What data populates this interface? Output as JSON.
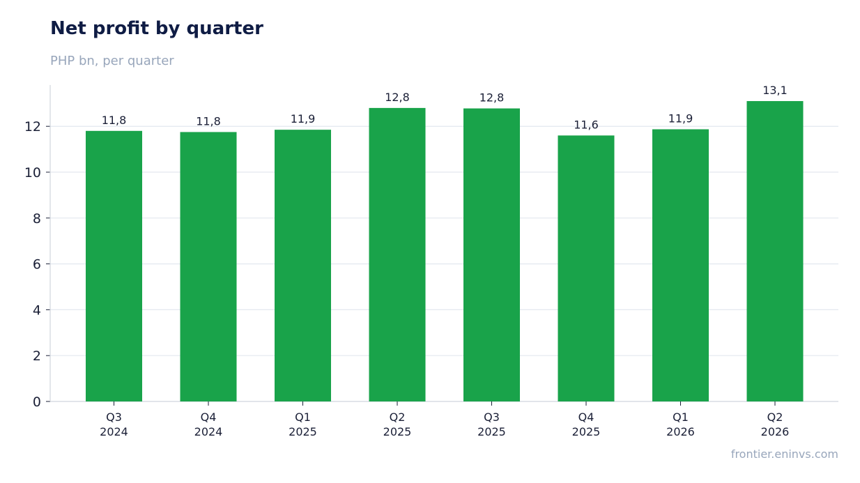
{
  "title": "Net profit by quarter",
  "subtitle": "PHP bn, per quarter",
  "source": "frontier.eninvs.com",
  "colors": {
    "bar": "#19a34a",
    "grid": "#e3e8ef",
    "axis": "#d0d5dd",
    "text": "#1a1f36"
  },
  "chart_data": {
    "type": "bar",
    "categories": [
      [
        "Q3",
        "2024"
      ],
      [
        "Q4",
        "2024"
      ],
      [
        "Q1",
        "2025"
      ],
      [
        "Q2",
        "2025"
      ],
      [
        "Q3",
        "2025"
      ],
      [
        "Q4",
        "2025"
      ],
      [
        "Q1",
        "2026"
      ],
      [
        "Q2",
        "2026"
      ]
    ],
    "values": [
      11.8,
      11.75,
      11.85,
      12.8,
      12.78,
      11.6,
      11.87,
      13.1
    ],
    "data_labels": [
      "11,8",
      "11,8",
      "11,9",
      "12,8",
      "12,8",
      "11,6",
      "11,9",
      "13,1"
    ],
    "yticks": [
      0,
      2,
      4,
      6,
      8,
      10,
      12
    ],
    "ylim": [
      0,
      13.8
    ],
    "grid": true,
    "legend": "none"
  }
}
